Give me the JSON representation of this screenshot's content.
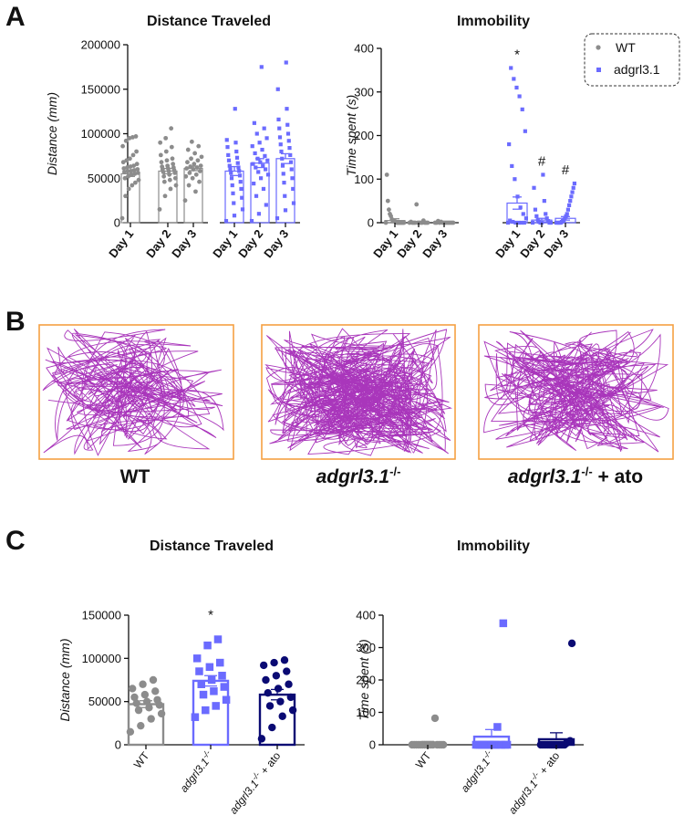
{
  "colors": {
    "wt": "#8c8c8c",
    "mut": "#6b6bff",
    "ato": "#0a0a73",
    "track": "#a020b4",
    "arena": "#f5a042"
  },
  "panel_labels": {
    "a": "A",
    "b": "B",
    "c": "C"
  },
  "legend": {
    "wt": "WT",
    "mut": "adgrl3.1"
  },
  "tracks": [
    {
      "label_main": "WT",
      "label_sup": "",
      "label_suffix": ""
    },
    {
      "label_main": "adgrl3.1",
      "label_sup": "-/-",
      "label_suffix": ""
    },
    {
      "label_main": "adgrl3.1",
      "label_sup": "-/-",
      "label_suffix": " + ato"
    }
  ],
  "chart_data": [
    {
      "id": "A-distance",
      "type": "bar",
      "title": "Distance Traveled",
      "ylabel": "Distance (mm)",
      "ylim": [
        0,
        200000
      ],
      "yticks": [
        0,
        50000,
        100000,
        150000,
        200000
      ],
      "categories": [
        "Day 1",
        "Day 2",
        "Day 3",
        "Day 1",
        "Day 2",
        "Day 3"
      ],
      "groups": [
        "wt",
        "wt",
        "wt",
        "mut",
        "mut",
        "mut"
      ],
      "values": [
        55000,
        58000,
        61000,
        58000,
        67000,
        72000
      ],
      "sem": [
        3000,
        3000,
        2500,
        5000,
        5000,
        5500
      ],
      "points": [
        [
          5000,
          30000,
          38000,
          42000,
          45000,
          48000,
          50000,
          52000,
          54000,
          55000,
          56000,
          57000,
          58000,
          58000,
          59000,
          60000,
          61000,
          62000,
          63000,
          64000,
          66000,
          68000,
          70000,
          72000,
          76000,
          80000,
          86000,
          92000,
          95000,
          96000,
          97000
        ],
        [
          15000,
          30000,
          38000,
          42000,
          46000,
          48000,
          50000,
          52000,
          54000,
          56000,
          57000,
          58000,
          59000,
          60000,
          61000,
          62000,
          63000,
          64000,
          66000,
          68000,
          70000,
          72000,
          76000,
          80000,
          85000,
          90000,
          95000,
          106000
        ],
        [
          25000,
          35000,
          42000,
          46000,
          50000,
          52000,
          54000,
          56000,
          58000,
          60000,
          61000,
          62000,
          63000,
          64000,
          66000,
          68000,
          70000,
          72000,
          74000,
          78000,
          82000,
          86000,
          91000
        ],
        [
          2000,
          8000,
          15000,
          22000,
          28000,
          33000,
          38000,
          42000,
          46000,
          50000,
          53000,
          56000,
          58000,
          60000,
          62000,
          64000,
          67000,
          70000,
          73000,
          76000,
          80000,
          85000,
          90000,
          93000,
          128000
        ],
        [
          2000,
          10000,
          20000,
          30000,
          38000,
          44000,
          50000,
          54000,
          57000,
          60000,
          62000,
          64000,
          66000,
          68000,
          70000,
          72000,
          75000,
          78000,
          82000,
          86000,
          90000,
          95000,
          100000,
          106000,
          112000,
          175000
        ],
        [
          5000,
          14000,
          22000,
          30000,
          38000,
          45000,
          50000,
          55000,
          60000,
          64000,
          68000,
          72000,
          76000,
          80000,
          84000,
          88000,
          92000,
          96000,
          100000,
          106000,
          110000,
          116000,
          128000,
          150000,
          180000
        ]
      ]
    },
    {
      "id": "A-immobility",
      "type": "bar",
      "title": "Immobility",
      "ylabel": "Time spent (s)",
      "ylim": [
        0,
        400
      ],
      "yticks": [
        0,
        100,
        200,
        300,
        400
      ],
      "categories": [
        "Day 1",
        "Day 2",
        "Day 3",
        "Day 1",
        "Day 2",
        "Day 3"
      ],
      "groups": [
        "wt",
        "wt",
        "wt",
        "mut",
        "mut",
        "mut"
      ],
      "values": [
        5,
        1,
        1,
        45,
        6,
        10
      ],
      "sem": [
        4,
        1,
        1,
        14,
        4,
        4
      ],
      "annotations": [
        "",
        "",
        "",
        "*",
        "#",
        "#"
      ],
      "points": [
        [
          0,
          0,
          0,
          0,
          0,
          0,
          0,
          0,
          0,
          2,
          3,
          4,
          5,
          8,
          15,
          20,
          30,
          50,
          110
        ],
        [
          0,
          0,
          0,
          0,
          0,
          0,
          0,
          0,
          0,
          0,
          0,
          2,
          5,
          42
        ],
        [
          0,
          0,
          0,
          0,
          0,
          0,
          0,
          0,
          0,
          0,
          0,
          2,
          4
        ],
        [
          0,
          0,
          0,
          0,
          0,
          2,
          5,
          10,
          20,
          35,
          60,
          100,
          130,
          180,
          210,
          260,
          290,
          310,
          330,
          355
        ],
        [
          0,
          0,
          0,
          0,
          0,
          2,
          4,
          6,
          10,
          15,
          20,
          30,
          50,
          80,
          110
        ],
        [
          0,
          0,
          0,
          0,
          0,
          2,
          4,
          6,
          10,
          15,
          20,
          30,
          40,
          50,
          60,
          70,
          80,
          90
        ]
      ]
    },
    {
      "id": "C-distance",
      "type": "bar",
      "title": "Distance Traveled",
      "ylabel": "Distance (mm)",
      "ylim": [
        0,
        150000
      ],
      "yticks": [
        0,
        50000,
        100000,
        150000
      ],
      "categories": [
        "WT",
        "adgrl3.1-/-",
        "adgrl3.1-/- + ato"
      ],
      "groups": [
        "wt",
        "mut",
        "ato"
      ],
      "values": [
        47000,
        74000,
        58000
      ],
      "sem": [
        4000,
        6000,
        6000
      ],
      "annotations": [
        "",
        "*",
        ""
      ],
      "points": [
        [
          15000,
          22000,
          30000,
          36000,
          40000,
          43000,
          46000,
          48000,
          50000,
          52000,
          55000,
          58000,
          62000,
          65000,
          70000,
          75000
        ],
        [
          32000,
          40000,
          45000,
          52000,
          58000,
          62000,
          67000,
          70000,
          75000,
          80000,
          85000,
          90000,
          95000,
          100000,
          115000,
          122000
        ],
        [
          7000,
          20000,
          33000,
          40000,
          45000,
          50000,
          55000,
          60000,
          65000,
          70000,
          75000,
          80000,
          85000,
          92000,
          95000,
          98000
        ]
      ]
    },
    {
      "id": "C-immobility",
      "type": "bar",
      "title": "Immobility",
      "ylabel": "Time spent (s)",
      "ylim": [
        0,
        400
      ],
      "yticks": [
        0,
        100,
        200,
        300,
        400
      ],
      "categories": [
        "WT",
        "adgrl3.1-/-",
        "adgrl3.1-/- + ato"
      ],
      "groups": [
        "wt",
        "mut",
        "ato"
      ],
      "values": [
        5,
        25,
        17
      ],
      "sem": [
        5,
        22,
        20
      ],
      "points": [
        [
          0,
          0,
          0,
          0,
          0,
          0,
          0,
          0,
          0,
          0,
          0,
          0,
          0,
          0,
          0,
          82
        ],
        [
          0,
          0,
          0,
          0,
          0,
          0,
          0,
          0,
          0,
          0,
          0,
          0,
          0,
          0,
          0,
          55,
          375
        ],
        [
          0,
          0,
          0,
          0,
          0,
          0,
          0,
          0,
          0,
          0,
          0,
          0,
          0,
          0,
          5,
          8,
          12,
          313
        ]
      ]
    }
  ]
}
